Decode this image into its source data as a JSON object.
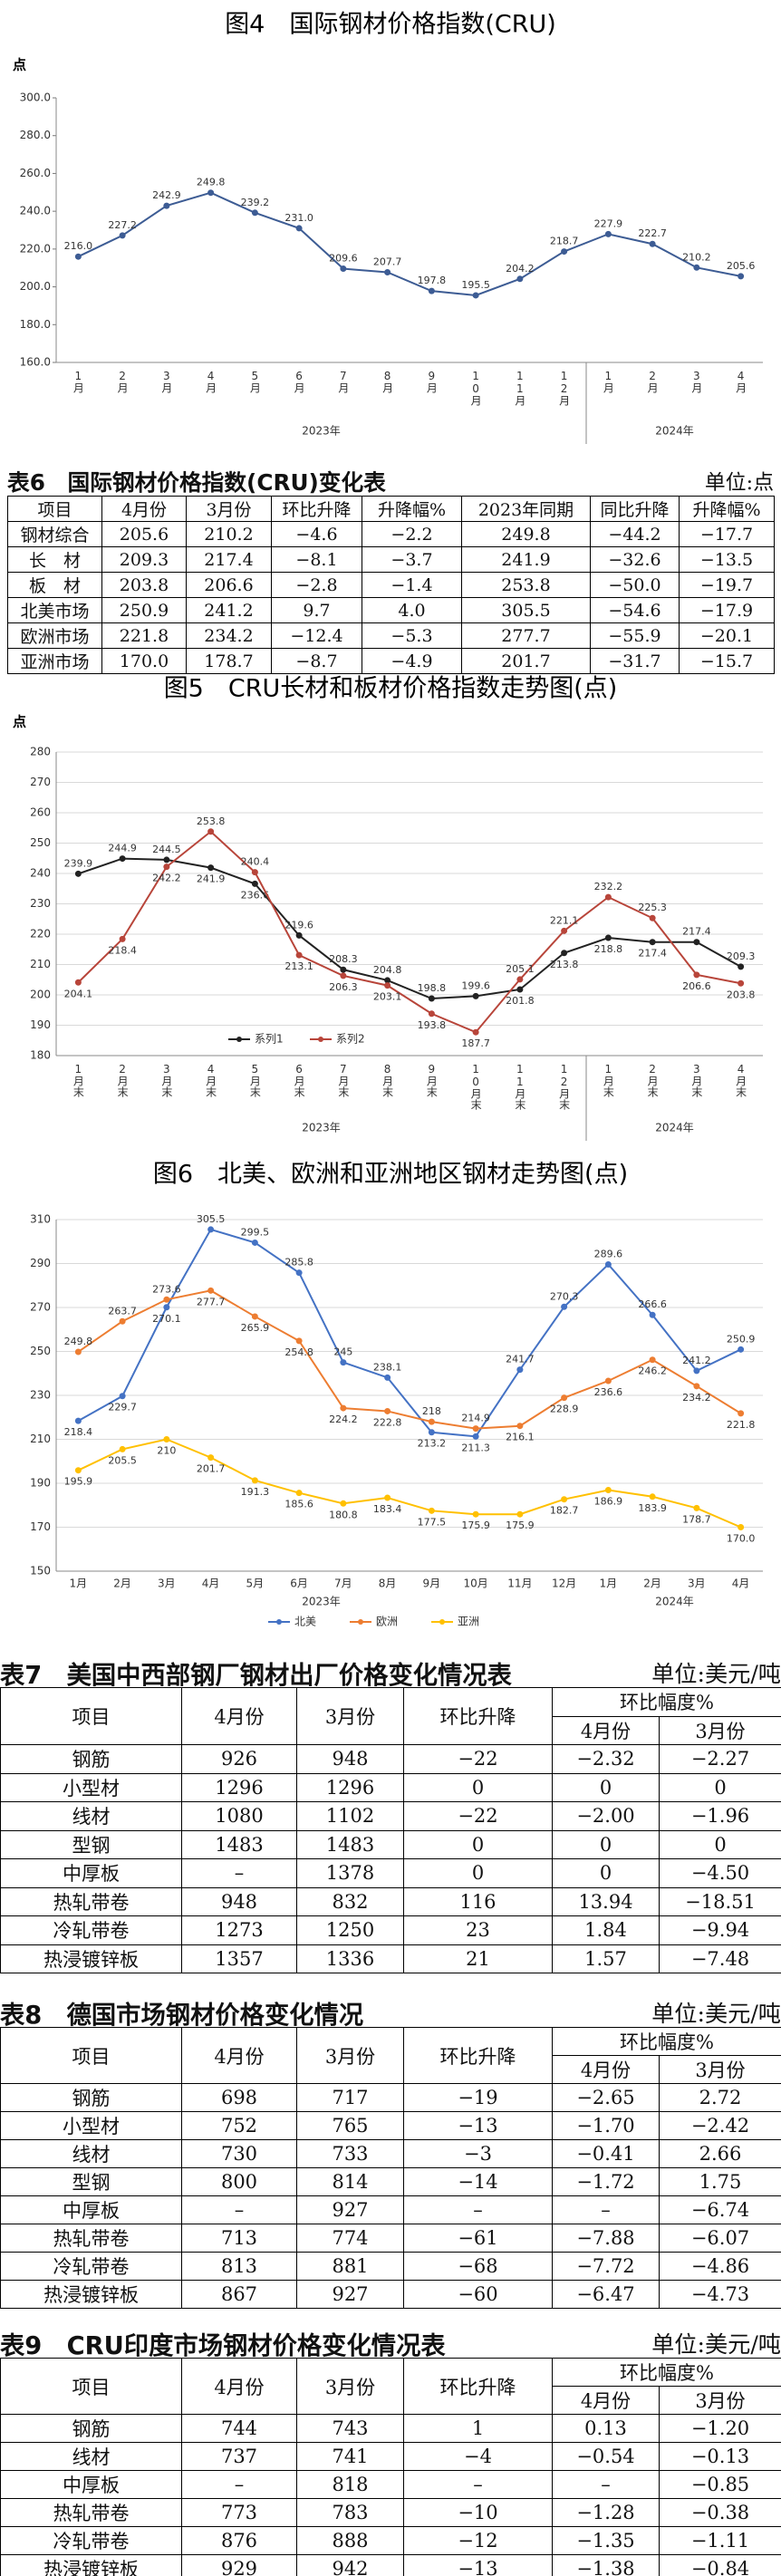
{
  "chart_data": [
    {
      "type": "line",
      "title": "图4　国际钢材价格指数(CRU)",
      "y_label": "点",
      "categories": [
        "1月",
        "2月",
        "3月",
        "4月",
        "5月",
        "6月",
        "7月",
        "8月",
        "9月",
        "10月",
        "11月",
        "12月",
        "1月",
        "2月",
        "3月",
        "4月"
      ],
      "x_groups": [
        "2023年",
        "2024年"
      ],
      "series": [
        {
          "color": "#3d5c94",
          "values": [
            216,
            227.2,
            242.9,
            249.8,
            239.2,
            231,
            209.6,
            207.7,
            197.8,
            195.5,
            204.2,
            218.7,
            227.9,
            222.7,
            210.2,
            205.6
          ],
          "value_labels": [
            "216.0",
            "227.2",
            "242.9",
            "249.8",
            "239.2",
            "231.0",
            "209.6",
            "207.7",
            "197.8",
            "195.5",
            "204.2",
            "218.7",
            "227.9",
            "222.7",
            "210.2",
            "205.6"
          ]
        }
      ],
      "ylim": [
        160,
        300
      ],
      "yticks": [
        {
          "value": 160,
          "label": "160.0"
        },
        {
          "value": 180,
          "label": "180.0"
        },
        {
          "value": 200,
          "label": "200.0"
        },
        {
          "value": 220,
          "label": "220.0"
        },
        {
          "value": 240,
          "label": "240.0"
        },
        {
          "value": 260,
          "label": "260.0"
        },
        {
          "value": 280,
          "label": "280.0"
        },
        {
          "value": 300,
          "label": "300.0"
        }
      ],
      "grid": false
    },
    {
      "type": "line",
      "title": "图5　CRU长材和板材价格指数走势图(点)",
      "y_label": "点",
      "categories": [
        "1月末",
        "2月末",
        "3月末",
        "4月末",
        "5月末",
        "6月末",
        "7月末",
        "8月末",
        "9月末",
        "10月末",
        "11月末",
        "12月末",
        "1月末",
        "2月末",
        "3月末",
        "4月末"
      ],
      "x_groups": [
        "2023年",
        "2024年"
      ],
      "series": [
        {
          "name": "系列1",
          "color": "#222222",
          "values": [
            239.9,
            244.9,
            244.5,
            241.9,
            236.6,
            219.6,
            208.3,
            204.8,
            198.8,
            199.6,
            201.8,
            213.8,
            218.8,
            217.4,
            217.4,
            209.3
          ]
        },
        {
          "name": "系列2",
          "color": "#b8453a",
          "values": [
            204.1,
            218.4,
            242.2,
            253.8,
            240.4,
            213.1,
            206.3,
            203.1,
            193.8,
            187.7,
            205.1,
            221.1,
            232.2,
            225.3,
            206.6,
            203.8
          ]
        }
      ],
      "ylim": [
        180,
        280
      ],
      "yticks": [
        180,
        190,
        200,
        210,
        220,
        230,
        240,
        250,
        260,
        270,
        280
      ],
      "grid": true,
      "legend": "bottom-left"
    },
    {
      "type": "line",
      "title": "图6　北美、欧洲和亚洲地区钢材走势图(点)",
      "categories": [
        "1月",
        "2月",
        "3月",
        "4月",
        "5月",
        "6月",
        "7月",
        "8月",
        "9月",
        "10月",
        "11月",
        "12月",
        "1月",
        "2月",
        "3月",
        "4月"
      ],
      "x_groups": [
        "2023年",
        "2024年"
      ],
      "series": [
        {
          "name": "北美",
          "color": "#4472c4",
          "values": [
            218.4,
            229.7,
            270.1,
            305.5,
            299.5,
            285.8,
            245,
            238.1,
            213.2,
            211.3,
            241.7,
            270.3,
            289.6,
            266.6,
            241.2,
            250.9
          ]
        },
        {
          "name": "欧洲",
          "color": "#ed7d31",
          "values": [
            249.8,
            263.7,
            273.6,
            277.7,
            265.9,
            254.8,
            224.2,
            222.8,
            218,
            214.9,
            216.1,
            228.9,
            236.6,
            246.2,
            234.2,
            221.8
          ]
        },
        {
          "name": "亚洲",
          "color": "#ffc000",
          "values": [
            195.9,
            205.5,
            210,
            201.7,
            191.3,
            185.6,
            180.8,
            183.4,
            177.5,
            175.9,
            175.9,
            182.7,
            186.9,
            183.9,
            178.7,
            170
          ],
          "value_labels": [
            "195.9",
            "205.5",
            "210",
            "201.7",
            "191.3",
            "185.6",
            "180.8",
            "183.4",
            "177.5",
            "175.9",
            "175.9",
            "182.7",
            "186.9",
            "183.9",
            "178.7",
            "170.0"
          ]
        }
      ],
      "ylim": [
        150,
        310
      ],
      "yticks": [
        150,
        170,
        190,
        210,
        230,
        250,
        270,
        290,
        310
      ],
      "grid": true,
      "legend": "bottom"
    }
  ],
  "tables": [
    {
      "title": "表6　国际钢材价格指数(CRU)变化表",
      "unit": "单位:点",
      "header": [
        "项目",
        "4月份",
        "3月份",
        "环比升降",
        "升降幅%",
        "2023年同期",
        "同比升降",
        "升降幅%"
      ],
      "rows": [
        [
          "钢材综合",
          "205.6",
          "210.2",
          "−4.6",
          "−2.2",
          "249.8",
          "−44.2",
          "−17.7"
        ],
        [
          "长　材",
          "209.3",
          "217.4",
          "−8.1",
          "−3.7",
          "241.9",
          "−32.6",
          "−13.5"
        ],
        [
          "板　材",
          "203.8",
          "206.6",
          "−2.8",
          "−1.4",
          "253.8",
          "−50.0",
          "−19.7"
        ],
        [
          "北美市场",
          "250.9",
          "241.2",
          "9.7",
          "4.0",
          "305.5",
          "−54.6",
          "−17.9"
        ],
        [
          "欧洲市场",
          "221.8",
          "234.2",
          "−12.4",
          "−5.3",
          "277.7",
          "−55.9",
          "−20.1"
        ],
        [
          "亚洲市场",
          "170.0",
          "178.7",
          "−8.7",
          "−4.9",
          "201.7",
          "−31.7",
          "−15.7"
        ]
      ]
    },
    {
      "title": "表7　美国中西部钢厂钢材出厂价格变化情况表",
      "unit": "单位:美元/吨",
      "header": [
        "项目",
        "4月份",
        "3月份",
        "环比升降",
        "环比幅度%"
      ],
      "subheader": [
        "4月份",
        "3月份"
      ],
      "rows": [
        [
          "钢筋",
          "926",
          "948",
          "−22",
          "−2.32",
          "−2.27"
        ],
        [
          "小型材",
          "1296",
          "1296",
          "0",
          "0",
          "0"
        ],
        [
          "线材",
          "1080",
          "1102",
          "−22",
          "−2.00",
          "−1.96"
        ],
        [
          "型钢",
          "1483",
          "1483",
          "0",
          "0",
          "0"
        ],
        [
          "中厚板",
          "–",
          "1378",
          "0",
          "0",
          "−4.50"
        ],
        [
          "热轧带卷",
          "948",
          "832",
          "116",
          "13.94",
          "−18.51"
        ],
        [
          "冷轧带卷",
          "1273",
          "1250",
          "23",
          "1.84",
          "−9.94"
        ],
        [
          "热浸镀锌板",
          "1357",
          "1336",
          "21",
          "1.57",
          "−7.48"
        ]
      ]
    },
    {
      "title": "表8　德国市场钢材价格变化情况",
      "unit": "单位:美元/吨",
      "header": [
        "项目",
        "4月份",
        "3月份",
        "环比升降",
        "环比幅度%"
      ],
      "subheader": [
        "4月份",
        "3月份"
      ],
      "rows": [
        [
          "钢筋",
          "698",
          "717",
          "−19",
          "−2.65",
          "2.72"
        ],
        [
          "小型材",
          "752",
          "765",
          "−13",
          "−1.70",
          "−2.42"
        ],
        [
          "线材",
          "730",
          "733",
          "−3",
          "−0.41",
          "2.66"
        ],
        [
          "型钢",
          "800",
          "814",
          "−14",
          "−1.72",
          "1.75"
        ],
        [
          "中厚板",
          "–",
          "927",
          "–",
          "–",
          "−6.74"
        ],
        [
          "热轧带卷",
          "713",
          "774",
          "−61",
          "−7.88",
          "−6.07"
        ],
        [
          "冷轧带卷",
          "813",
          "881",
          "−68",
          "−7.72",
          "−4.86"
        ],
        [
          "热浸镀锌板",
          "867",
          "927",
          "−60",
          "−6.47",
          "−4.73"
        ]
      ]
    },
    {
      "title": "表9　CRU印度市场钢材价格变化情况表",
      "unit": "单位:美元/吨",
      "header": [
        "项目",
        "4月份",
        "3月份",
        "环比升降",
        "环比幅度%"
      ],
      "subheader": [
        "4月份",
        "3月份"
      ],
      "rows": [
        [
          "钢筋",
          "744",
          "743",
          "1",
          "0.13",
          "−1.20"
        ],
        [
          "线材",
          "737",
          "741",
          "−4",
          "−0.54",
          "−0.13"
        ],
        [
          "中厚板",
          "–",
          "818",
          "–",
          "–",
          "−0.85"
        ],
        [
          "热轧带卷",
          "773",
          "783",
          "−10",
          "−1.28",
          "−0.38"
        ],
        [
          "冷轧带卷",
          "876",
          "888",
          "−12",
          "−1.35",
          "−1.11"
        ],
        [
          "热浸镀锌板",
          "929",
          "942",
          "−13",
          "−1.38",
          "−0.84"
        ]
      ]
    }
  ]
}
